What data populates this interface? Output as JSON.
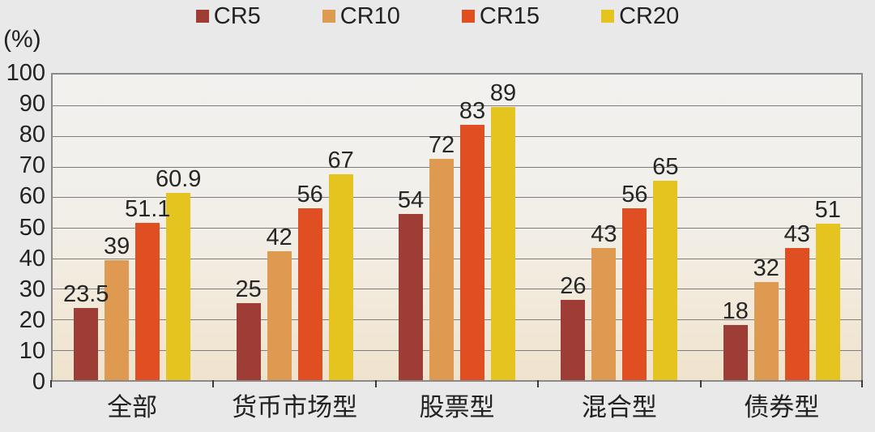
{
  "chart_data": {
    "type": "bar",
    "title": "",
    "xlabel": "",
    "ylabel": "(%)",
    "ylim": [
      0,
      100
    ],
    "ytick_step": 10,
    "grid": true,
    "legend_position": "top",
    "categories": [
      "全部",
      "货币市场型",
      "股票型",
      "混合型",
      "债券型"
    ],
    "series": [
      {
        "name": "CR5",
        "color": "#9e3d36",
        "values": [
          23.5,
          25,
          54,
          26,
          18
        ],
        "labels": [
          "23.5",
          "25",
          "54",
          "26",
          "18"
        ]
      },
      {
        "name": "CR10",
        "color": "#df9a52",
        "values": [
          39,
          42,
          72,
          43,
          32
        ],
        "labels": [
          "39",
          "42",
          "72",
          "43",
          "32"
        ]
      },
      {
        "name": "CR15",
        "color": "#e04f22",
        "values": [
          51.1,
          56,
          83,
          56,
          43
        ],
        "labels": [
          "51.1",
          "56",
          "83",
          "56",
          "43"
        ]
      },
      {
        "name": "CR20",
        "color": "#e6c41f",
        "values": [
          60.9,
          67,
          89,
          65,
          51
        ],
        "labels": [
          "60.9",
          "67",
          "89",
          "65",
          "51"
        ]
      }
    ]
  },
  "colors": {
    "background": "#e9e9e9",
    "plot_border": "#8a8a8a",
    "gridline": "#7d7d7d",
    "text": "#222222"
  }
}
